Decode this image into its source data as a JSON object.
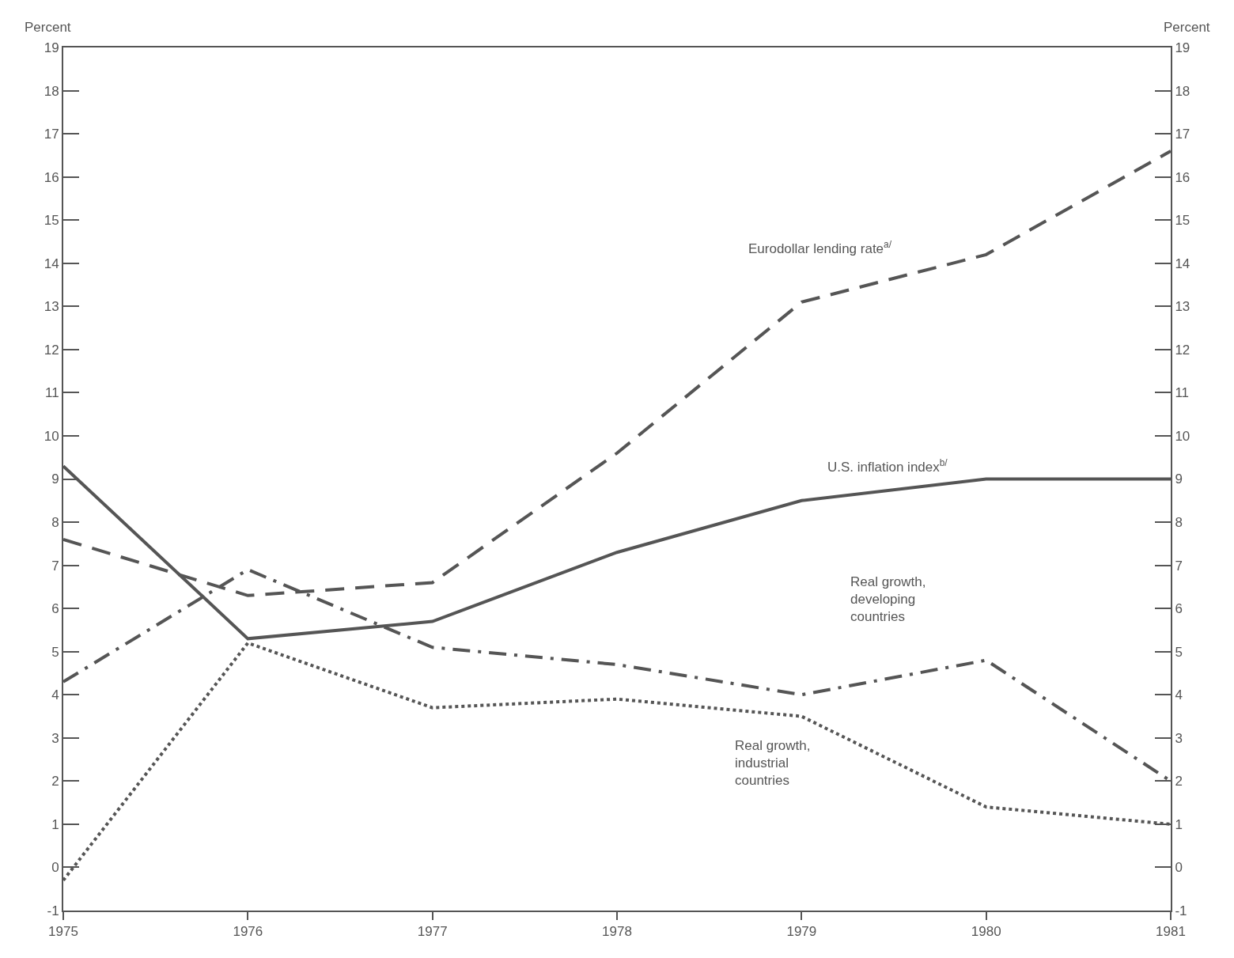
{
  "chart_data": {
    "type": "line",
    "x": [
      1975,
      1976,
      1977,
      1978,
      1979,
      1980,
      1981
    ],
    "series": [
      {
        "color": "#555555",
        "line_style": "dashed",
        "values": [
          7.6,
          6.3,
          6.6,
          9.6,
          13.1,
          14.2,
          16.6
        ]
      },
      {
        "color": "#555555",
        "line_style": "solid",
        "values": [
          9.3,
          5.3,
          5.7,
          7.3,
          8.5,
          9.0,
          9.0
        ]
      },
      {
        "color": "#555555",
        "line_style": "dashdot",
        "values": [
          4.3,
          6.9,
          5.1,
          4.7,
          4.0,
          4.8,
          2.0
        ]
      },
      {
        "color": "#555555",
        "line_style": "dotted",
        "values": [
          -0.3,
          5.2,
          3.7,
          3.9,
          3.5,
          1.4,
          1.0
        ]
      }
    ],
    "xlim": [
      1975,
      1981
    ],
    "xticks": [
      1975,
      1976,
      1977,
      1978,
      1979,
      1980,
      1981
    ],
    "ylabel": "Percent",
    "y2label": "Percent",
    "ylim": [
      -1,
      19
    ],
    "yticks": [
      -1,
      0,
      1,
      2,
      3,
      4,
      5,
      6,
      7,
      8,
      9,
      10,
      11,
      12,
      13,
      14,
      15,
      16,
      17,
      18,
      19
    ],
    "y2lim": [
      -1,
      19
    ],
    "y2ticks": [
      -1,
      0,
      1,
      2,
      3,
      4,
      5,
      6,
      7,
      8,
      9,
      10,
      11,
      12,
      13,
      14,
      15,
      16,
      17,
      18,
      19
    ],
    "annotations": [
      "Eurodollar lending rate$^{a/}$",
      "U.S. inflation index$^{b/}$",
      "Real growth,\ndeveloping\ncountries",
      "Real growth,\nindustrial\ncountries"
    ],
    "grid": false,
    "marker": "none"
  }
}
